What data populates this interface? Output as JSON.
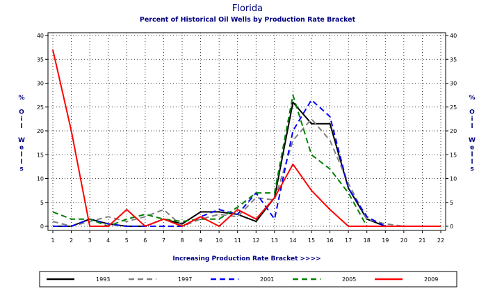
{
  "chart_data": {
    "type": "line",
    "title": "Florida",
    "subtitle": "Percent of Historical Oil Wells by Production Rate Bracket",
    "xlabel": "Increasing Production Rate Bracket >>>>",
    "ylabel": "% Oil Wells",
    "ylabel_chars": [
      "%",
      "",
      "O",
      "i",
      "l",
      "",
      "W",
      "e",
      "l",
      "l",
      "s"
    ],
    "x": [
      1,
      2,
      3,
      4,
      5,
      6,
      7,
      8,
      9,
      10,
      11,
      12,
      13,
      14,
      15,
      16,
      17,
      18,
      19,
      20,
      21,
      22
    ],
    "xlim": [
      1,
      22
    ],
    "ylim": [
      0,
      40
    ],
    "yticks": [
      0,
      5,
      10,
      15,
      20,
      25,
      30,
      35,
      40
    ],
    "grid": true,
    "legend_position": "bottom",
    "series": [
      {
        "name": "1993",
        "color": "#000000",
        "dash": "solid",
        "values": [
          0,
          0,
          1.5,
          0.5,
          0,
          0,
          1.5,
          0.5,
          3,
          3,
          2.5,
          1,
          6,
          26,
          21.5,
          21.5,
          8,
          1.5,
          0,
          0,
          0,
          0
        ]
      },
      {
        "name": "1997",
        "color": "#808080",
        "dash": "dash",
        "values": [
          1,
          0,
          1,
          2,
          1,
          2,
          3.5,
          0,
          1.5,
          2.5,
          2,
          6,
          5.5,
          18,
          22.5,
          18,
          9,
          1.5,
          0.5,
          0,
          0,
          0
        ]
      },
      {
        "name": "2001",
        "color": "#0000ff",
        "dash": "dash",
        "values": [
          0,
          0,
          1.5,
          0.5,
          0,
          0,
          0,
          0,
          2,
          3.5,
          2.5,
          7,
          1.5,
          20,
          26.5,
          23,
          8,
          2,
          0,
          0,
          0,
          0
        ]
      },
      {
        "name": "2005",
        "color": "#008000",
        "dash": "dash",
        "values": [
          3,
          1.5,
          1.5,
          0,
          1.5,
          2.5,
          1.5,
          1,
          1.5,
          1.5,
          4,
          7,
          7,
          27.5,
          15,
          12,
          7,
          0,
          0,
          0,
          0,
          0
        ]
      },
      {
        "name": "2009",
        "color": "#ff0000",
        "dash": "solid",
        "values": [
          37,
          20,
          0,
          0,
          3.5,
          0,
          1.5,
          0,
          2,
          0,
          3.5,
          1.5,
          6,
          13,
          7.5,
          3.5,
          0,
          0,
          0,
          0,
          0,
          0
        ]
      }
    ]
  }
}
